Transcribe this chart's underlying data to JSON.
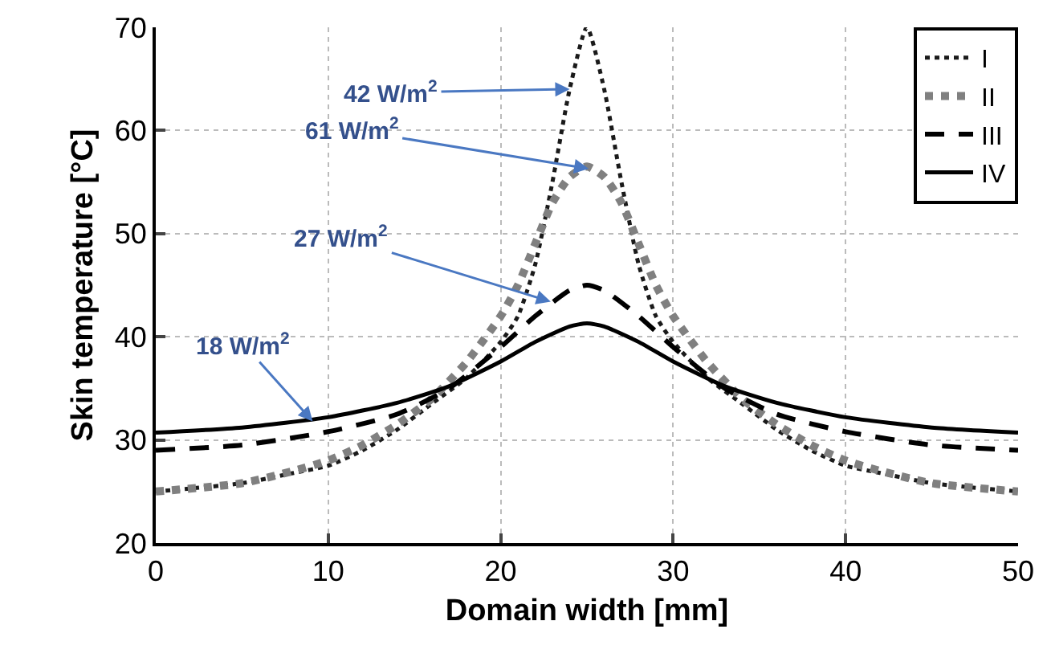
{
  "chart_data": {
    "type": "line",
    "xlabel": "Domain width [mm]",
    "ylabel": "Skin temperature [°C]",
    "xlim": [
      0,
      50
    ],
    "xticks": [
      0,
      10,
      20,
      30,
      40,
      50
    ],
    "ylim": [
      20,
      70
    ],
    "yticks": [
      20,
      30,
      40,
      50,
      60,
      70
    ],
    "grid": true,
    "legend": "top right",
    "series": [
      {
        "name": "I",
        "color": "#1a1a1a",
        "line_style": "dotted",
        "x": [
          0,
          5,
          8,
          10,
          12,
          14,
          16,
          18,
          20,
          21,
          22,
          23,
          24,
          25,
          26,
          27,
          28,
          29,
          30,
          32,
          34,
          36,
          38,
          40,
          42,
          45,
          50
        ],
        "values": [
          25,
          25.8,
          26.8,
          27.5,
          29,
          31,
          33.5,
          36,
          39.5,
          42,
          47,
          55,
          64,
          70,
          64,
          55,
          47,
          42,
          39.5,
          36,
          33.5,
          31,
          29,
          27.5,
          26.8,
          25.8,
          25
        ]
      },
      {
        "name": "II",
        "color": "#808080",
        "line_style": "dotted",
        "x": [
          0,
          5,
          8,
          10,
          12,
          14,
          16,
          18,
          20,
          21,
          22,
          23,
          24,
          25,
          26,
          27,
          28,
          29,
          30,
          32,
          34,
          36,
          38,
          40,
          42,
          45,
          50
        ],
        "values": [
          25,
          25.8,
          27,
          28,
          29.5,
          31.5,
          34,
          37.5,
          42,
          45,
          49,
          53,
          55.5,
          56.5,
          55.5,
          53,
          49,
          45,
          42,
          37.5,
          34,
          31.5,
          29.5,
          28,
          27,
          25.8,
          25
        ]
      },
      {
        "name": "III",
        "color": "#000000",
        "line_style": "dashed",
        "x": [
          0,
          5,
          10,
          14,
          17,
          20,
          22,
          24,
          25,
          26,
          28,
          30,
          33,
          36,
          40,
          45,
          50
        ],
        "values": [
          29,
          29.5,
          30.8,
          32.5,
          35,
          39,
          42,
          44.5,
          45,
          44.5,
          42,
          39,
          35,
          32.5,
          30.8,
          29.5,
          29
        ]
      },
      {
        "name": "IV",
        "color": "#000000",
        "line_style": "solid",
        "x": [
          0,
          5,
          10,
          14,
          17,
          20,
          22,
          24,
          25,
          26,
          28,
          30,
          33,
          36,
          40,
          45,
          50
        ],
        "values": [
          30.7,
          31.2,
          32.2,
          33.6,
          35.2,
          37.6,
          39.5,
          41,
          41.3,
          41,
          39.5,
          37.6,
          35.2,
          33.6,
          32.2,
          31.2,
          30.7
        ]
      }
    ],
    "annotations": [
      {
        "text": "42 W/m$^{2}$",
        "x": 24,
        "y": 64
      },
      {
        "text": "61 W/m$^{2}$",
        "x": 25.1,
        "y": 56.3
      },
      {
        "text": "27 W/m$^{2}$",
        "x": 22.9,
        "y": 43.4
      },
      {
        "text": "18 W/m$^{2}$",
        "x": 9.1,
        "y": 31.8
      }
    ]
  }
}
